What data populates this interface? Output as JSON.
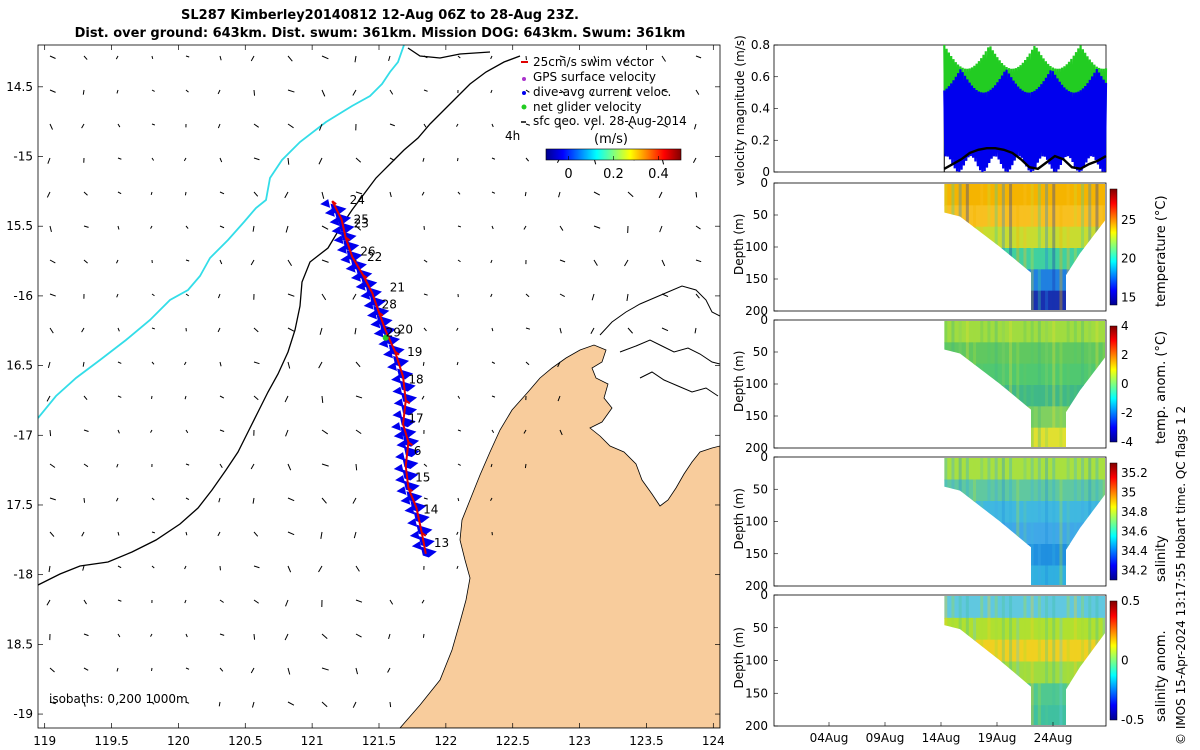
{
  "title": {
    "line1": "SL287 Kimberley20140812 12-Aug 06Z to 28-Aug 23Z.",
    "line2": "Dist. over ground: 643km. Dist. swum: 361km. Mission DOG: 643km. Swum: 361km"
  },
  "credit": "© IMOS 15-Apr-2024 13:17:55 Hobart time. QC flags 1  2",
  "colors": {
    "land": "#f8cc9c",
    "track_current": "#0000ee",
    "swim_vector": "#e00000",
    "gps_velocity": "#aa33cc",
    "net_velocity": "#22cc22",
    "border": "#000000",
    "surface_track": "#33dde8"
  },
  "chart_data": [
    {
      "type": "map",
      "name": "glider track map",
      "xlim": [
        118.95,
        124.05
      ],
      "ylim": [
        -19.1,
        -14.2
      ],
      "x_ticks": [
        119,
        119.5,
        120,
        120.5,
        121,
        121.5,
        122,
        122.5,
        123,
        123.5,
        124
      ],
      "x_tick_labels": [
        "119",
        "119.5",
        "120",
        "120.5",
        "121",
        "121.5",
        "122",
        "122.5",
        "123",
        "123.5",
        "124"
      ],
      "y_ticks": [
        -14.5,
        -15,
        -15.5,
        -16,
        -16.5,
        -17,
        -17.5,
        -18,
        -18.5,
        -19
      ],
      "y_tick_labels": [
        "14.5",
        "-15",
        "15.5",
        "-16",
        "16.5",
        "-17",
        "17.5",
        "-18",
        "18.5",
        "-19"
      ],
      "legend": [
        {
          "label": "25cm/s swim vector",
          "color": "#e00000"
        },
        {
          "label": "GPS surface velocity",
          "color": "#aa33cc"
        },
        {
          "label": "dive-avg current veloc.",
          "color": "#0000ee"
        },
        {
          "label": "net glider velocity",
          "color": "#22cc22"
        },
        {
          "label": "sfc geo. vel. 28-Aug-2014",
          "color": "#000000"
        }
      ],
      "extra_text": "4h",
      "colorbar": {
        "title": "(m/s)",
        "ticks": [
          0,
          0.2,
          0.4
        ],
        "tick_labels": [
          "0",
          "0.2",
          "0.4"
        ],
        "range": [
          -0.1,
          0.5
        ]
      },
      "isobath_label": "isobaths: 0   200  1000m",
      "track": [
        [
          121.15,
          -15.32
        ],
        [
          121.22,
          -15.45
        ],
        [
          121.25,
          -15.58
        ],
        [
          121.3,
          -15.72
        ],
        [
          121.38,
          -15.85
        ],
        [
          121.45,
          -15.98
        ],
        [
          121.5,
          -16.12
        ],
        [
          121.55,
          -16.25
        ],
        [
          121.62,
          -16.4
        ],
        [
          121.68,
          -16.58
        ],
        [
          121.7,
          -16.75
        ],
        [
          121.68,
          -16.92
        ],
        [
          121.72,
          -17.05
        ],
        [
          121.7,
          -17.22
        ],
        [
          121.72,
          -17.38
        ],
        [
          121.78,
          -17.52
        ],
        [
          121.82,
          -17.7
        ],
        [
          121.85,
          -17.85
        ]
      ],
      "day_labels": [
        {
          "day": "24",
          "lon": 121.28,
          "lat": -15.34
        },
        {
          "day": "25",
          "lon": 121.31,
          "lat": -15.48
        },
        {
          "day": "23",
          "lon": 121.31,
          "lat": -15.51
        },
        {
          "day": "26",
          "lon": 121.36,
          "lat": -15.71
        },
        {
          "day": "22",
          "lon": 121.41,
          "lat": -15.75
        },
        {
          "day": "21",
          "lon": 121.58,
          "lat": -15.97
        },
        {
          "day": "28",
          "lon": 121.52,
          "lat": -16.09
        },
        {
          "day": "20",
          "lon": 121.64,
          "lat": -16.27
        },
        {
          "day": "29",
          "lon": 121.55,
          "lat": -16.29
        },
        {
          "day": "19",
          "lon": 121.71,
          "lat": -16.43
        },
        {
          "day": "18",
          "lon": 121.72,
          "lat": -16.63
        },
        {
          "day": "17",
          "lon": 121.72,
          "lat": -16.91
        },
        {
          "day": "6",
          "lon": 121.76,
          "lat": -17.14
        },
        {
          "day": "15",
          "lon": 121.77,
          "lat": -17.33
        },
        {
          "day": "14",
          "lon": 121.83,
          "lat": -17.56
        },
        {
          "day": "13",
          "lon": 121.91,
          "lat": -17.8
        }
      ]
    },
    {
      "type": "line",
      "name": "velocity magnitude",
      "ylabel": "velocity magnitude (m/s)",
      "ylim": [
        0,
        0.8
      ],
      "y_ticks": [
        0,
        0.2,
        0.4,
        0.6,
        0.8
      ],
      "y_tick_labels": [
        "0",
        "0.2",
        "0.4",
        "0.6",
        "0.8"
      ],
      "x_range_days": [
        0,
        39
      ],
      "data_start_day": 20,
      "series": [
        {
          "name": "net glider velocity",
          "color": "#22cc22",
          "band": [
            0.1,
            0.8
          ]
        },
        {
          "name": "dive-avg current veloc.",
          "color": "#0000ee",
          "band": [
            0.05,
            0.7
          ]
        },
        {
          "name": "swim speed",
          "color": "#000000",
          "x": [
            20,
            21,
            22,
            23,
            24,
            25,
            26,
            27,
            28,
            29,
            30,
            31,
            32,
            33,
            34,
            35,
            36,
            37,
            38,
            39
          ],
          "values": [
            0.02,
            0.05,
            0.08,
            0.12,
            0.14,
            0.15,
            0.15,
            0.14,
            0.12,
            0.08,
            0.03,
            0.02,
            0.06,
            0.1,
            0.08,
            0.03,
            0.02,
            0.05,
            0.07,
            0.1
          ]
        }
      ]
    },
    {
      "type": "heatmap",
      "name": "temperature section",
      "ylabel": "Depth (m)",
      "y_ticks": [
        0,
        50,
        100,
        150,
        200
      ],
      "y_tick_labels": [
        "0",
        "50",
        "100",
        "150",
        "200"
      ],
      "colorbar_label": "temperature (°C)",
      "colorbar_ticks": [
        "15",
        "20",
        "25"
      ],
      "colorbar_range": [
        14,
        29
      ]
    },
    {
      "type": "heatmap",
      "name": "temperature anomaly section",
      "ylabel": "Depth (m)",
      "y_ticks": [
        0,
        50,
        100,
        150,
        200
      ],
      "y_tick_labels": [
        "0",
        "50",
        "100",
        "150",
        "200"
      ],
      "colorbar_label": "temp. anom. (°C)",
      "colorbar_ticks": [
        "-4",
        "-2",
        "0",
        "2",
        "4"
      ],
      "colorbar_range": [
        -4,
        4
      ]
    },
    {
      "type": "heatmap",
      "name": "salinity section",
      "ylabel": "Depth (m)",
      "y_ticks": [
        0,
        50,
        100,
        150,
        200
      ],
      "y_tick_labels": [
        "0",
        "50",
        "100",
        "150",
        "200"
      ],
      "colorbar_label": "salinity",
      "colorbar_ticks": [
        "34.2",
        "34.4",
        "34.6",
        "34.8",
        "35",
        "35.2"
      ],
      "colorbar_range": [
        34.1,
        35.3
      ]
    },
    {
      "type": "heatmap",
      "name": "salinity anomaly section",
      "ylabel": "Depth (m)",
      "y_ticks": [
        0,
        50,
        100,
        150,
        200
      ],
      "y_tick_labels": [
        "0",
        "50",
        "100",
        "150",
        "200"
      ],
      "x_ticks": [
        "04Aug",
        "09Aug",
        "14Aug",
        "19Aug",
        "24Aug"
      ],
      "colorbar_label": "salinity anom.",
      "colorbar_ticks": [
        "-0.5",
        "0",
        "0.5"
      ],
      "colorbar_range": [
        -0.5,
        0.5
      ]
    }
  ]
}
